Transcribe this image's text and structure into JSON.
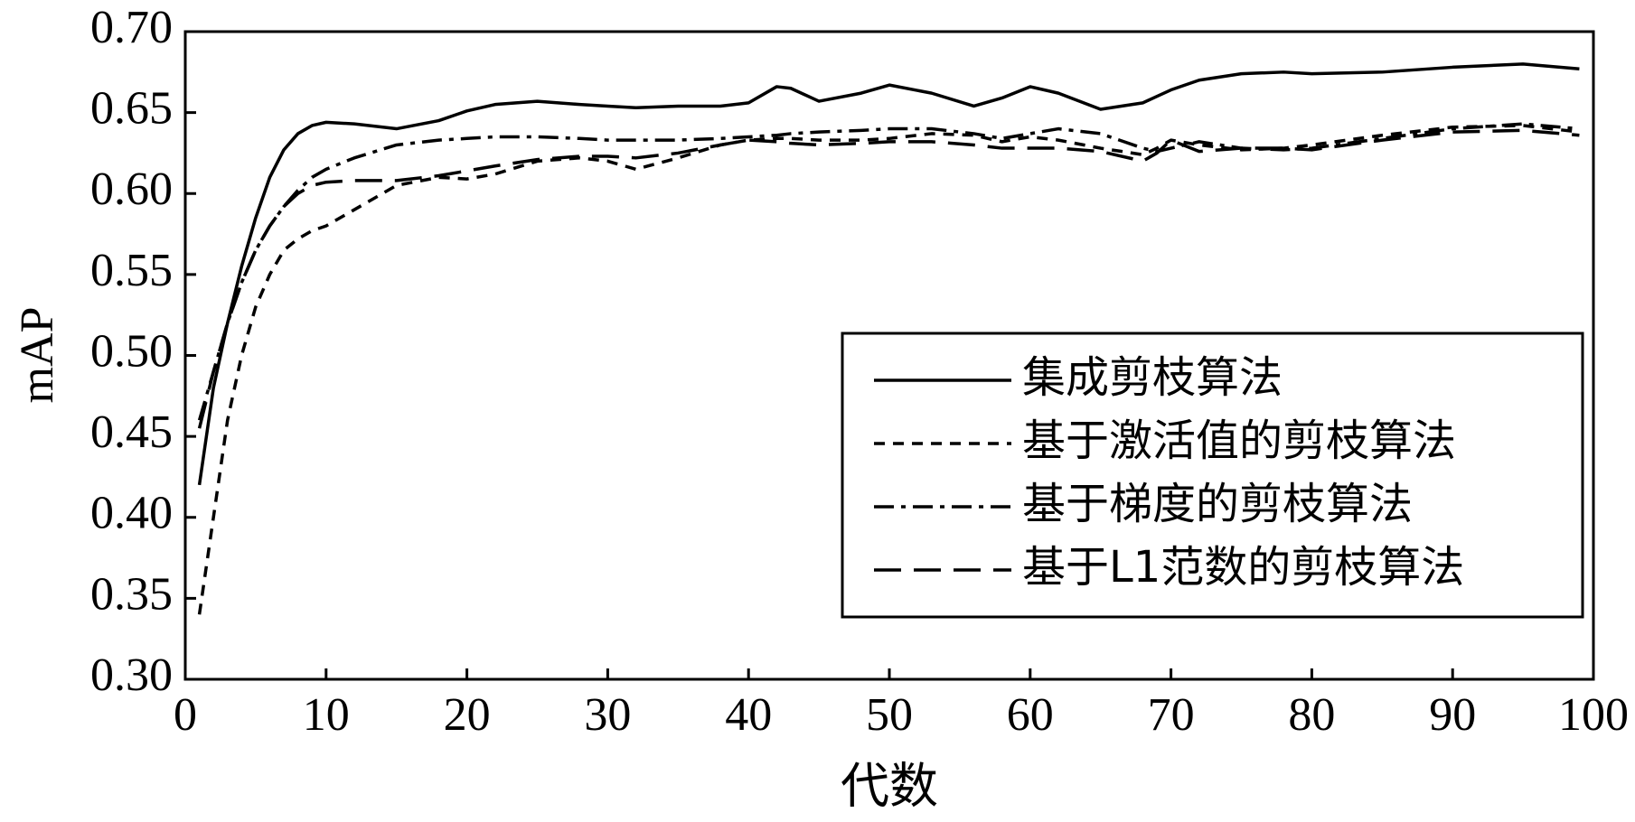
{
  "chart_data": {
    "type": "line",
    "x_label": "代数",
    "y_label": "mAP",
    "x": [
      1,
      2,
      3,
      4,
      5,
      6,
      7,
      8,
      9,
      10,
      12,
      15,
      18,
      20,
      22,
      25,
      28,
      30,
      32,
      35,
      38,
      40,
      42,
      43,
      45,
      48,
      50,
      53,
      56,
      58,
      60,
      62,
      65,
      68,
      69,
      70,
      72,
      75,
      78,
      80,
      85,
      90,
      95,
      99
    ],
    "series": [
      {
        "name": "集成剪枝算法",
        "color": "#000000",
        "dash": "solid",
        "values": [
          0.42,
          0.48,
          0.52,
          0.555,
          0.585,
          0.61,
          0.627,
          0.637,
          0.642,
          0.644,
          0.643,
          0.64,
          0.645,
          0.651,
          0.655,
          0.657,
          0.655,
          0.654,
          0.653,
          0.654,
          0.654,
          0.656,
          0.666,
          0.665,
          0.657,
          0.662,
          0.667,
          0.662,
          0.654,
          0.659,
          0.666,
          0.662,
          0.652,
          0.656,
          0.66,
          0.664,
          0.67,
          0.674,
          0.675,
          0.674,
          0.675,
          0.678,
          0.68,
          0.677
        ]
      },
      {
        "name": "基于激活值的剪枝算法",
        "color": "#000000",
        "dash": "dotted",
        "values": [
          0.34,
          0.4,
          0.46,
          0.5,
          0.53,
          0.55,
          0.565,
          0.572,
          0.577,
          0.58,
          0.59,
          0.605,
          0.61,
          0.609,
          0.612,
          0.62,
          0.622,
          0.62,
          0.615,
          0.622,
          0.63,
          0.633,
          0.634,
          0.634,
          0.633,
          0.633,
          0.634,
          0.637,
          0.636,
          0.632,
          0.635,
          0.633,
          0.628,
          0.624,
          0.628,
          0.633,
          0.63,
          0.627,
          0.628,
          0.63,
          0.636,
          0.641,
          0.642,
          0.638
        ]
      },
      {
        "name": "基于梯度的剪枝算法",
        "color": "#000000",
        "dash": "dashdot",
        "values": [
          0.46,
          0.49,
          0.52,
          0.545,
          0.565,
          0.58,
          0.592,
          0.602,
          0.61,
          0.615,
          0.622,
          0.63,
          0.633,
          0.634,
          0.635,
          0.635,
          0.634,
          0.633,
          0.633,
          0.633,
          0.634,
          0.635,
          0.636,
          0.637,
          0.638,
          0.639,
          0.64,
          0.64,
          0.637,
          0.634,
          0.637,
          0.64,
          0.637,
          0.628,
          0.626,
          0.628,
          0.632,
          0.628,
          0.627,
          0.628,
          0.634,
          0.64,
          0.643,
          0.64
        ]
      },
      {
        "name": "基于L1范数的剪枝算法",
        "color": "#000000",
        "dash": "dashed",
        "values": [
          0.455,
          0.49,
          0.52,
          0.545,
          0.565,
          0.58,
          0.592,
          0.6,
          0.605,
          0.607,
          0.608,
          0.608,
          0.611,
          0.614,
          0.617,
          0.621,
          0.623,
          0.623,
          0.622,
          0.625,
          0.63,
          0.633,
          0.632,
          0.631,
          0.63,
          0.631,
          0.632,
          0.632,
          0.63,
          0.628,
          0.628,
          0.628,
          0.626,
          0.62,
          0.625,
          0.633,
          0.626,
          0.628,
          0.628,
          0.627,
          0.633,
          0.638,
          0.639,
          0.636
        ]
      }
    ],
    "xlim": [
      0,
      100
    ],
    "xticks": [
      0,
      10,
      20,
      30,
      40,
      50,
      60,
      70,
      80,
      90,
      100
    ],
    "ylim": [
      0.3,
      0.7
    ],
    "yticks": [
      {
        "value": 0.3,
        "label": "0.30"
      },
      {
        "value": 0.35,
        "label": "0.35"
      },
      {
        "value": 0.4,
        "label": "0.40"
      },
      {
        "value": 0.45,
        "label": "0.45"
      },
      {
        "value": 0.5,
        "label": "0.50"
      },
      {
        "value": 0.55,
        "label": "0.55"
      },
      {
        "value": 0.6,
        "label": "0.60"
      },
      {
        "value": 0.65,
        "label": "0.65"
      },
      {
        "value": 0.7,
        "label": "0.70"
      }
    ],
    "grid": false,
    "legend": "lower right"
  }
}
